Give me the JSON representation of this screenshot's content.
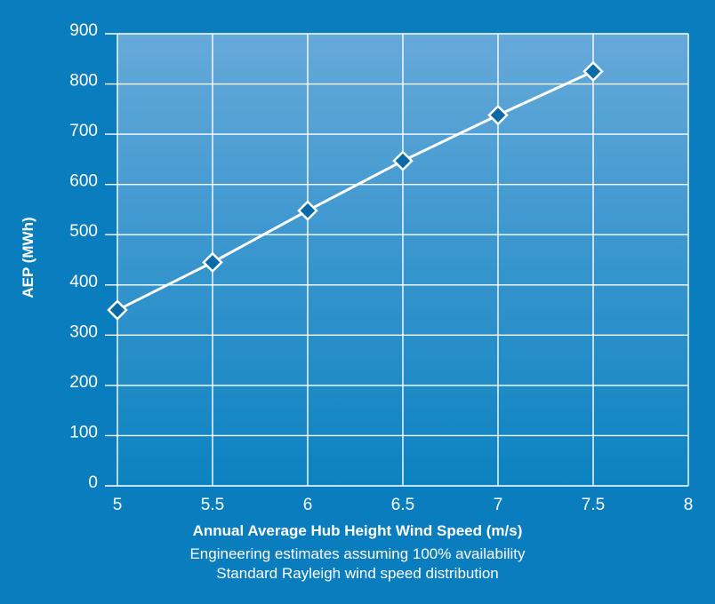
{
  "chart_data": {
    "type": "line",
    "x": [
      5,
      5.5,
      6,
      6.5,
      7,
      7.5
    ],
    "series": [
      {
        "values": [
          350,
          445,
          548,
          647,
          738,
          825
        ]
      }
    ],
    "xlabel": "Annual Average Hub Height Wind Speed (m/s)",
    "ylabel": "AEP (MWh)",
    "notes": [
      "Engineering estimates assuming 100% availability",
      "Standard Rayleigh wind speed distribution"
    ],
    "xlim": [
      5,
      8
    ],
    "ylim": [
      0,
      900
    ],
    "xticks": [
      "5",
      "5.5",
      "6",
      "6.5",
      "7",
      "7.5",
      "8"
    ],
    "yticks": [
      "0",
      "100",
      "200",
      "300",
      "400",
      "500",
      "600",
      "700",
      "800",
      "900"
    ],
    "grid": true,
    "marker": "diamond",
    "colors": {
      "background": "#0a7dbe",
      "plot_top": "#66a9da",
      "plot_bottom": "#0b82c1",
      "line": "#ffffff",
      "marker_fill": "#0a6aa8",
      "grid": "#ffffff",
      "text": "#ffffff"
    }
  }
}
